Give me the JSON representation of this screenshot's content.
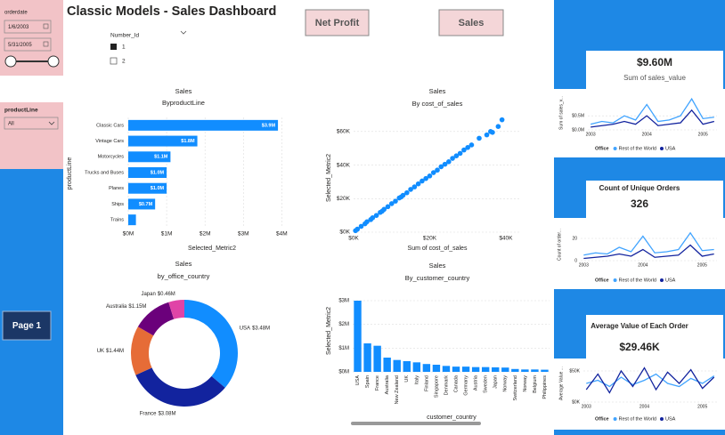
{
  "header": {
    "title": "Classic Models - Sales Dashboard"
  },
  "buttons": [
    "Net Profit",
    "Sales"
  ],
  "nav": {
    "page": "Page 1"
  },
  "slicers": {
    "orderdate": {
      "label": "orderdate",
      "start": "1/6/2003",
      "end": "5/31/2005"
    },
    "productLine": {
      "label": "productLine",
      "value": "All"
    }
  },
  "filter_legend": {
    "title": "Number_Id",
    "items": [
      "1",
      "2"
    ]
  },
  "cards": [
    {
      "value": "$9.60M",
      "label": "Sum of sales_value"
    },
    {
      "value": "326",
      "label": "Count of Unique Orders"
    },
    {
      "value": "$29.46K",
      "label": "Average Value of Each Order"
    }
  ],
  "chart_data": [
    {
      "type": "bar",
      "title": "Sales",
      "subtitle": "ByproductLine",
      "x_label": "Selected_Metric2",
      "y_label": "productLine",
      "categories": [
        "Classic Cars",
        "Vintage Cars",
        "Motorcycles",
        "Trucks and Buses",
        "Planes",
        "Ships",
        "Trains"
      ],
      "values": [
        3.9,
        1.8,
        1.1,
        1.0,
        1.0,
        0.7,
        0.2
      ],
      "value_labels": [
        "$3.9M",
        "$1.8M",
        "$1.1M",
        "$1.0M",
        "$1.0M",
        "$0.7M",
        null
      ],
      "color": "#118DFF",
      "xlim": [
        0,
        4.2
      ],
      "xticks": [
        {
          "value": 0,
          "label": "$0M"
        },
        {
          "value": 1,
          "label": "$1M"
        },
        {
          "value": 2,
          "label": "$2M"
        },
        {
          "value": 3,
          "label": "$3M"
        },
        {
          "value": 4,
          "label": "$4M"
        }
      ],
      "grid": true
    },
    {
      "type": "scatter",
      "title": "Sales",
      "subtitle": "By cost_of_sales",
      "x_label": "Sum of cost_of_sales",
      "y_label": "Selected_Metric2",
      "x": [
        0.5,
        1,
        2,
        3,
        3.5,
        4.5,
        5,
        6,
        7,
        7.5,
        8,
        9,
        10,
        11,
        12,
        12.5,
        13,
        14,
        15,
        16,
        17,
        18,
        19,
        20,
        21,
        22,
        23,
        24,
        25,
        26,
        27,
        28,
        29,
        30,
        31,
        33,
        35,
        36,
        38,
        39,
        36.5
      ],
      "values": [
        0.9,
        1.8,
        3.5,
        5,
        6.2,
        7.5,
        8.6,
        10,
        11.8,
        12.5,
        13.6,
        15.2,
        17,
        18.5,
        20.4,
        21,
        22,
        23.5,
        25.5,
        27,
        28.8,
        30.5,
        32,
        33.5,
        35.5,
        37,
        39,
        40.5,
        42,
        44,
        45.5,
        47,
        49,
        50.5,
        52,
        56,
        58,
        60,
        63,
        67,
        59.5
      ],
      "color": "#118DFF",
      "xlim": [
        0,
        44
      ],
      "ylim": [
        0,
        70
      ],
      "xticks": [
        {
          "value": 0,
          "label": "$0K"
        },
        {
          "value": 20,
          "label": "$20K"
        },
        {
          "value": 40,
          "label": "$40K"
        }
      ],
      "yticks": [
        {
          "value": 0,
          "label": "$0K"
        },
        {
          "value": 20,
          "label": "$20K"
        },
        {
          "value": 40,
          "label": "$40K"
        },
        {
          "value": 60,
          "label": "$60K"
        }
      ],
      "grid": true
    },
    {
      "type": "donut",
      "title": "Sales",
      "subtitle": "by_office_country",
      "categories": [
        "USA",
        "France",
        "UK",
        "Australia",
        "Japan"
      ],
      "values": [
        3.48,
        3.08,
        1.44,
        1.15,
        0.46
      ],
      "value_labels": [
        "$3.48M",
        "$3.08M",
        "$1.44M",
        "$1.15M",
        "$0.46M"
      ],
      "colors": [
        "#118DFF",
        "#12239E",
        "#E66C37",
        "#6B007B",
        "#E044A7"
      ]
    },
    {
      "type": "column",
      "title": "Sales",
      "subtitle": "By_customer_country",
      "x_label": "customer_country",
      "y_label": "Selected_Metric2",
      "categories": [
        "USA",
        "Spain",
        "France",
        "Australia",
        "New Zealand",
        "UK",
        "Italy",
        "Finland",
        "Singapore",
        "Denmark",
        "Canada",
        "Germany",
        "Austria",
        "Sweden",
        "Japan",
        "Norway",
        "Switzerland",
        "Norway",
        "Belgium",
        "Philippines"
      ],
      "values": [
        3.0,
        1.2,
        1.1,
        0.6,
        0.5,
        0.45,
        0.4,
        0.33,
        0.3,
        0.25,
        0.22,
        0.22,
        0.2,
        0.2,
        0.19,
        0.18,
        0.12,
        0.1,
        0.1,
        0.09
      ],
      "color": "#118DFF",
      "ylim": [
        0,
        3.3
      ],
      "yticks": [
        {
          "value": 0,
          "label": "$0M"
        },
        {
          "value": 1,
          "label": "$1M"
        },
        {
          "value": 2,
          "label": "$2M"
        },
        {
          "value": 3,
          "label": "$3M"
        }
      ],
      "grid": true
    },
    {
      "type": "line",
      "y_label": "Sum of sales_v...",
      "legend_title": "Office",
      "x": [
        2003.0,
        2003.2,
        2003.4,
        2003.6,
        2003.8,
        2004.0,
        2004.2,
        2004.4,
        2004.6,
        2004.8,
        2005.0,
        2005.2
      ],
      "series": [
        {
          "name": "Rest of the World",
          "color": "#41A4FF",
          "values": [
            0.2,
            0.3,
            0.25,
            0.5,
            0.35,
            0.9,
            0.3,
            0.35,
            0.5,
            1.1,
            0.4,
            0.45
          ]
        },
        {
          "name": "USA",
          "color": "#12239E",
          "values": [
            0.1,
            0.15,
            0.2,
            0.3,
            0.2,
            0.5,
            0.15,
            0.2,
            0.25,
            0.7,
            0.2,
            0.3
          ]
        }
      ],
      "xlim": [
        2002.95,
        2005.25
      ],
      "xticks": [
        2003,
        2004,
        2005
      ],
      "ylim": [
        0,
        1.2
      ],
      "yticks": [
        {
          "value": 0,
          "label": "$0.0M"
        },
        {
          "value": 0.5,
          "label": "$0.5M"
        }
      ],
      "grid": true
    },
    {
      "type": "line",
      "y_label": "Count of order...",
      "legend_title": "Office",
      "x": [
        2003.0,
        2003.2,
        2003.4,
        2003.6,
        2003.8,
        2004.0,
        2004.2,
        2004.4,
        2004.6,
        2004.8,
        2005.0,
        2005.2
      ],
      "series": [
        {
          "name": "Rest of the World",
          "color": "#41A4FF",
          "values": [
            5,
            7,
            6,
            12,
            8,
            22,
            7,
            8,
            10,
            25,
            9,
            10
          ]
        },
        {
          "name": "USA",
          "color": "#12239E",
          "values": [
            2,
            3,
            4,
            6,
            4,
            10,
            3,
            4,
            5,
            14,
            4,
            6
          ]
        }
      ],
      "xlim": [
        2002.95,
        2005.25
      ],
      "xticks": [
        2003,
        2004,
        2005
      ],
      "ylim": [
        0,
        28
      ],
      "yticks": [
        0,
        20
      ],
      "grid": true
    },
    {
      "type": "line",
      "y_label": "Average Value ...",
      "legend_title": "Office",
      "x": [
        2003.0,
        2003.2,
        2003.4,
        2003.6,
        2003.8,
        2004.0,
        2004.2,
        2004.4,
        2004.6,
        2004.8,
        2005.0,
        2005.2
      ],
      "series": [
        {
          "name": "Rest of the World",
          "color": "#41A4FF",
          "values": [
            30,
            35,
            25,
            40,
            28,
            35,
            45,
            30,
            25,
            38,
            30,
            42
          ]
        },
        {
          "name": "USA",
          "color": "#12239E",
          "values": [
            20,
            45,
            15,
            50,
            25,
            55,
            20,
            48,
            30,
            52,
            22,
            40
          ]
        }
      ],
      "xlim": [
        2002.95,
        2005.25
      ],
      "xticks": [
        2003,
        2004,
        2005
      ],
      "ylim": [
        0,
        60
      ],
      "yticks": [
        {
          "value": 0,
          "label": "$0K"
        },
        {
          "value": 50,
          "label": "$50K"
        }
      ],
      "grid": true
    }
  ]
}
